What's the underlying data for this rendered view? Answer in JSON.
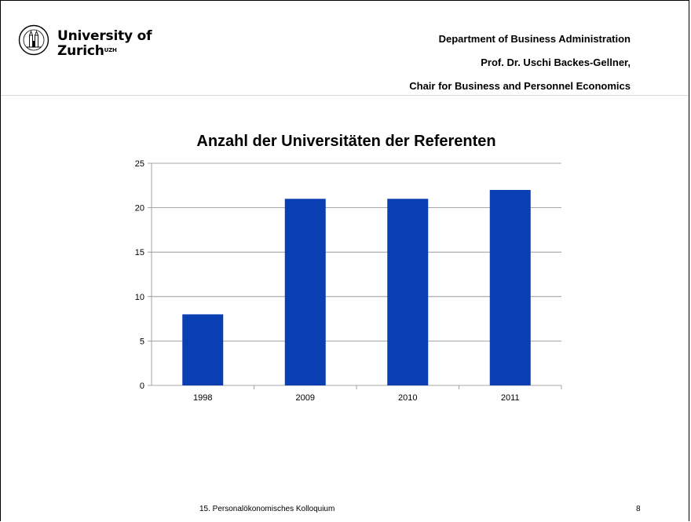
{
  "header": {
    "logo_line1": "University of",
    "logo_line2": "Zurich",
    "logo_sup": "UZH",
    "dept_line1": "Department of Business Administration",
    "dept_line2": "Prof. Dr. Uschi Backes-Gellner,",
    "dept_line3": "Chair for Business and Personnel Economics"
  },
  "chart_data": {
    "type": "bar",
    "title": "Anzahl der Universitäten der Referenten",
    "categories": [
      "1998",
      "2009",
      "2010",
      "2011"
    ],
    "values": [
      8,
      21,
      21,
      22
    ],
    "ylim": [
      0,
      25
    ],
    "yticks": [
      0,
      5,
      10,
      15,
      20,
      25
    ],
    "xlabel": "",
    "ylabel": "",
    "grid": true,
    "color": "#0a3fb4"
  },
  "footer": {
    "text": "15. Personalökonomisches Kolloquium",
    "page": "8"
  }
}
